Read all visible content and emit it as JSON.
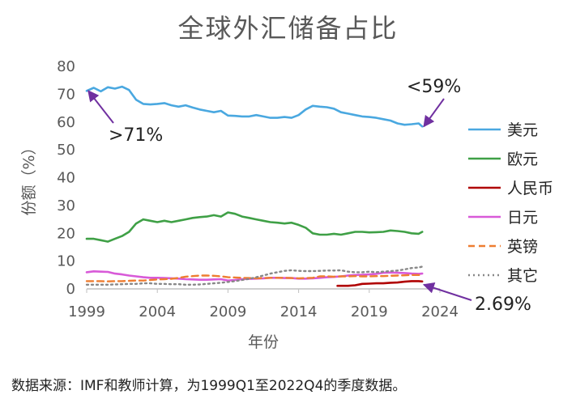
{
  "chart_data": {
    "type": "line",
    "title": "全球外汇储备占比",
    "xlabel": "年份",
    "ylabel": "份额（%）",
    "xlim": [
      1999,
      2024
    ],
    "ylim": [
      0,
      80
    ],
    "xticks": [
      "1999",
      "2004",
      "2009",
      "2014",
      "2019",
      "2024"
    ],
    "yticks": [
      "0",
      "10",
      "20",
      "30",
      "40",
      "50",
      "60",
      "70",
      "80"
    ],
    "grid": false,
    "legend_position": "right",
    "series": [
      {
        "name": "美元",
        "color": "#4aa8e0",
        "dash": "solid",
        "x": [
          1999.0,
          1999.5,
          2000.0,
          2000.5,
          2001.0,
          2001.5,
          2002.0,
          2002.5,
          2003.0,
          2003.5,
          2004.0,
          2004.5,
          2005.0,
          2005.5,
          2006.0,
          2006.5,
          2007.0,
          2007.5,
          2008.0,
          2008.5,
          2009.0,
          2009.5,
          2010.0,
          2010.5,
          2011.0,
          2011.5,
          2012.0,
          2012.5,
          2013.0,
          2013.5,
          2014.0,
          2014.5,
          2015.0,
          2015.5,
          2016.0,
          2016.5,
          2017.0,
          2017.5,
          2018.0,
          2018.5,
          2019.0,
          2019.5,
          2020.0,
          2020.5,
          2021.0,
          2021.5,
          2022.0,
          2022.5,
          2022.75
        ],
        "values": [
          71.2,
          72.3,
          71.0,
          72.5,
          72.0,
          72.7,
          71.5,
          68.0,
          66.5,
          66.3,
          66.5,
          66.8,
          66.0,
          65.5,
          66.0,
          65.2,
          64.5,
          64.0,
          63.5,
          64.0,
          62.3,
          62.2,
          62.0,
          62.0,
          62.5,
          62.0,
          61.5,
          61.5,
          61.8,
          61.5,
          62.5,
          64.5,
          65.8,
          65.5,
          65.3,
          64.8,
          63.5,
          63.0,
          62.5,
          62.0,
          61.8,
          61.5,
          61.0,
          60.5,
          59.5,
          59.0,
          59.2,
          59.5,
          58.4
        ]
      },
      {
        "name": "欧元",
        "color": "#3fa046",
        "dash": "solid",
        "x": [
          1999.0,
          1999.5,
          2000.0,
          2000.5,
          2001.0,
          2001.5,
          2002.0,
          2002.5,
          2003.0,
          2003.5,
          2004.0,
          2004.5,
          2005.0,
          2005.5,
          2006.0,
          2006.5,
          2007.0,
          2007.5,
          2008.0,
          2008.5,
          2009.0,
          2009.5,
          2010.0,
          2010.5,
          2011.0,
          2011.5,
          2012.0,
          2012.5,
          2013.0,
          2013.5,
          2014.0,
          2014.5,
          2015.0,
          2015.5,
          2016.0,
          2016.5,
          2017.0,
          2017.5,
          2018.0,
          2018.5,
          2019.0,
          2019.5,
          2020.0,
          2020.5,
          2021.0,
          2021.5,
          2022.0,
          2022.5,
          2022.75
        ],
        "values": [
          18.0,
          18.0,
          17.5,
          17.0,
          18.0,
          19.0,
          20.5,
          23.5,
          25.0,
          24.5,
          24.0,
          24.5,
          24.0,
          24.5,
          25.0,
          25.5,
          25.8,
          26.0,
          26.5,
          26.0,
          27.5,
          27.0,
          26.0,
          25.5,
          25.0,
          24.5,
          24.0,
          23.8,
          23.5,
          23.8,
          23.0,
          22.0,
          20.0,
          19.5,
          19.5,
          19.8,
          19.5,
          20.0,
          20.5,
          20.5,
          20.3,
          20.4,
          20.5,
          21.0,
          20.8,
          20.5,
          20.0,
          19.8,
          20.5
        ]
      },
      {
        "name": "人民币",
        "color": "#b00000",
        "dash": "solid",
        "x": [
          2016.75,
          2017.5,
          2018.0,
          2018.5,
          2019.0,
          2019.5,
          2020.0,
          2020.5,
          2021.0,
          2021.5,
          2022.0,
          2022.5,
          2022.75
        ],
        "values": [
          1.1,
          1.1,
          1.3,
          1.8,
          1.9,
          2.0,
          2.0,
          2.2,
          2.3,
          2.6,
          2.8,
          2.8,
          2.69
        ]
      },
      {
        "name": "日元",
        "color": "#d85ad8",
        "dash": "solid",
        "x": [
          1999.0,
          1999.5,
          2000.0,
          2000.5,
          2001.0,
          2001.5,
          2002.0,
          2002.5,
          2003.0,
          2003.5,
          2004.0,
          2004.5,
          2005.0,
          2005.5,
          2006.0,
          2006.5,
          2007.0,
          2007.5,
          2008.0,
          2008.5,
          2009.0,
          2009.5,
          2010.0,
          2010.5,
          2011.0,
          2011.5,
          2012.0,
          2012.5,
          2013.0,
          2013.5,
          2014.0,
          2014.5,
          2015.0,
          2015.5,
          2016.0,
          2016.5,
          2017.0,
          2017.5,
          2018.0,
          2018.5,
          2019.0,
          2019.5,
          2020.0,
          2020.5,
          2021.0,
          2021.5,
          2022.0,
          2022.5,
          2022.75
        ],
        "values": [
          6.0,
          6.3,
          6.2,
          6.1,
          5.5,
          5.2,
          4.8,
          4.5,
          4.2,
          4.0,
          4.0,
          3.9,
          3.8,
          3.7,
          3.5,
          3.4,
          3.3,
          3.3,
          3.4,
          3.5,
          3.0,
          3.2,
          3.5,
          3.6,
          3.7,
          3.8,
          4.0,
          4.0,
          3.9,
          3.9,
          3.7,
          3.7,
          3.8,
          4.0,
          4.2,
          4.3,
          4.5,
          4.8,
          5.0,
          5.1,
          5.2,
          5.4,
          5.8,
          5.9,
          5.8,
          5.7,
          5.5,
          5.4,
          5.5
        ]
      },
      {
        "name": "英镑",
        "color": "#ee7d31",
        "dash": "dash",
        "x": [
          1999.0,
          1999.5,
          2000.0,
          2000.5,
          2001.0,
          2001.5,
          2002.0,
          2002.5,
          2003.0,
          2003.5,
          2004.0,
          2004.5,
          2005.0,
          2005.5,
          2006.0,
          2006.5,
          2007.0,
          2007.5,
          2008.0,
          2008.5,
          2009.0,
          2009.5,
          2010.0,
          2010.5,
          2011.0,
          2011.5,
          2012.0,
          2012.5,
          2013.0,
          2013.5,
          2014.0,
          2014.5,
          2015.0,
          2015.5,
          2016.0,
          2016.5,
          2017.0,
          2017.5,
          2018.0,
          2018.5,
          2019.0,
          2019.5,
          2020.0,
          2020.5,
          2021.0,
          2021.5,
          2022.0,
          2022.5,
          2022.75
        ],
        "values": [
          2.8,
          2.8,
          2.8,
          2.7,
          2.8,
          2.8,
          2.9,
          3.0,
          3.0,
          3.2,
          3.4,
          3.5,
          3.6,
          4.0,
          4.4,
          4.6,
          4.8,
          4.8,
          4.7,
          4.5,
          4.2,
          4.1,
          4.0,
          3.9,
          3.8,
          3.9,
          4.0,
          4.0,
          4.0,
          3.9,
          3.8,
          3.9,
          4.0,
          4.5,
          4.5,
          4.4,
          4.5,
          4.5,
          4.6,
          4.5,
          4.5,
          4.6,
          4.6,
          4.7,
          4.8,
          4.9,
          5.0,
          5.0,
          4.9
        ]
      },
      {
        "name": "其它",
        "color": "#888888",
        "dash": "dot",
        "x": [
          1999.0,
          1999.5,
          2000.0,
          2000.5,
          2001.0,
          2001.5,
          2002.0,
          2002.5,
          2003.0,
          2003.5,
          2004.0,
          2004.5,
          2005.0,
          2005.5,
          2006.0,
          2006.5,
          2007.0,
          2007.5,
          2008.0,
          2008.5,
          2009.0,
          2009.5,
          2010.0,
          2010.5,
          2011.0,
          2011.5,
          2012.0,
          2012.5,
          2013.0,
          2013.5,
          2014.0,
          2014.5,
          2015.0,
          2015.5,
          2016.0,
          2016.5,
          2017.0,
          2017.5,
          2018.0,
          2018.5,
          2019.0,
          2019.5,
          2020.0,
          2020.5,
          2021.0,
          2021.5,
          2022.0,
          2022.5,
          2022.75
        ],
        "values": [
          1.5,
          1.5,
          1.5,
          1.5,
          1.6,
          1.7,
          1.8,
          1.8,
          2.0,
          2.0,
          1.8,
          1.8,
          1.7,
          1.7,
          1.5,
          1.5,
          1.6,
          1.8,
          2.0,
          2.2,
          2.5,
          2.8,
          3.2,
          3.6,
          4.2,
          4.8,
          5.5,
          6.0,
          6.5,
          6.7,
          6.5,
          6.4,
          6.4,
          6.5,
          6.6,
          6.6,
          6.7,
          6.2,
          6.0,
          6.0,
          6.2,
          6.0,
          6.2,
          6.4,
          6.6,
          7.0,
          7.5,
          7.7,
          8.0
        ]
      }
    ],
    "annotations": [
      {
        "text": ">71%",
        "series": "美元",
        "target_x": 1999.0,
        "target_y": 71.2
      },
      {
        "text": "<59%",
        "series": "美元",
        "target_x": 2022.75,
        "target_y": 58.4
      },
      {
        "text": "2.69%",
        "series": "人民币",
        "target_x": 2022.75,
        "target_y": 2.69
      }
    ],
    "annotation_arrow_color": "#7030a0"
  },
  "source_note": "数据来源：IMF和教师计算，为1999Q1至2022Q4的季度数据。"
}
